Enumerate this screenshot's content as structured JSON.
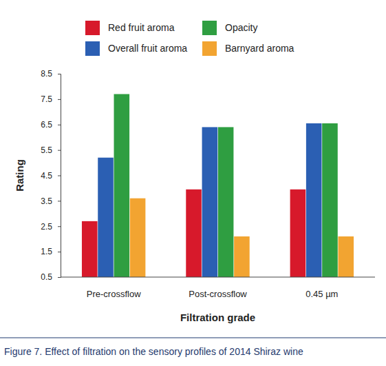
{
  "chart_data": {
    "type": "bar",
    "title": "Figure 7.  Effect of filtration on the sensory profiles of 2014 Shiraz wine",
    "x_label": "Filtration grade",
    "y_label": "Rating",
    "categories": [
      "Pre-crossflow",
      "Post-crossflow",
      "0.45 µm"
    ],
    "series": [
      {
        "name": "Red fruit aroma",
        "color": "#d7192b",
        "values": [
          2.7,
          3.95,
          3.95
        ]
      },
      {
        "name": "Overall fruit aroma",
        "color": "#2b5fb3",
        "values": [
          5.2,
          6.4,
          6.55
        ]
      },
      {
        "name": "Opacity",
        "color": "#2f9e41",
        "values": [
          7.7,
          6.4,
          6.55
        ]
      },
      {
        "name": "Barnyard aroma",
        "color": "#f2a431",
        "values": [
          3.6,
          2.1,
          2.1
        ]
      }
    ],
    "ylim": [
      0.5,
      8.5
    ],
    "yticks": [
      0.5,
      1.5,
      2.5,
      3.5,
      4.5,
      5.5,
      6.5,
      7.5,
      8.5
    ],
    "grid": false,
    "legend": "top"
  }
}
